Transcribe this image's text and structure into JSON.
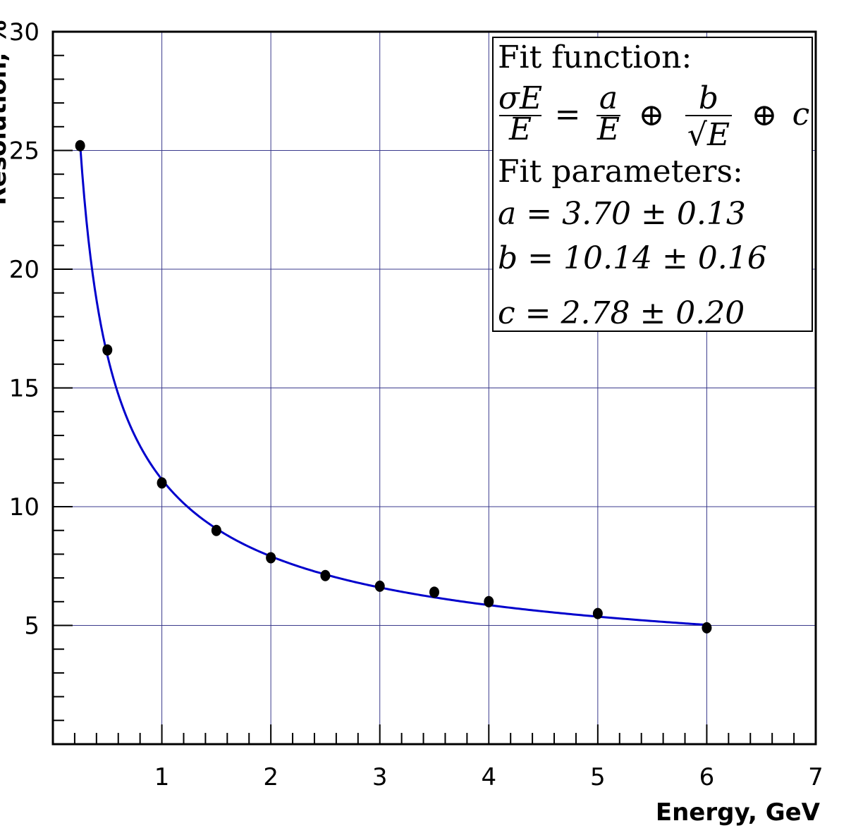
{
  "chart_data": {
    "type": "scatter",
    "xlabel": "Energy, GeV",
    "ylabel": "Resolution, %",
    "xlim": [
      0,
      7
    ],
    "ylim": [
      0,
      30
    ],
    "x_ticks": [
      1,
      2,
      3,
      4,
      5,
      6,
      7
    ],
    "y_ticks": [
      5,
      10,
      15,
      20,
      25,
      30
    ],
    "grid": true,
    "series": [
      {
        "values_x": [
          0.25,
          0.5,
          1.0,
          1.5,
          2.0,
          2.5,
          3.0,
          3.5,
          4.0,
          5.0,
          6.0
        ],
        "values_y": [
          25.2,
          16.6,
          11.0,
          9.0,
          7.85,
          7.1,
          6.65,
          6.4,
          6.0,
          5.5,
          4.9
        ],
        "marker": "circle",
        "color": "#000000"
      }
    ],
    "fit": {
      "formula": "σE/E = a/E ⊕ b/√E ⊕ c",
      "params": {
        "a": 3.7,
        "b": 10.14,
        "c": 2.78
      },
      "x_range": [
        0.25,
        6.0
      ],
      "color": "#0000cc"
    },
    "legend": {
      "placement": "top-right",
      "title": "Fit function:",
      "params_title": "Fit parameters:",
      "line_a": "a = 3.70 ± 0.13",
      "line_b": "b = 10.14 ± 0.16",
      "line_c": "c = 2.78 ± 0.20",
      "formula_lhs_num": "σE",
      "formula_lhs_den": "E",
      "formula_a_num": "a",
      "formula_a_den": "E",
      "formula_b_num": "b",
      "formula_b_den": "√E",
      "formula_c": "c",
      "formula_eq": "=",
      "formula_oplus": "⊕"
    }
  }
}
